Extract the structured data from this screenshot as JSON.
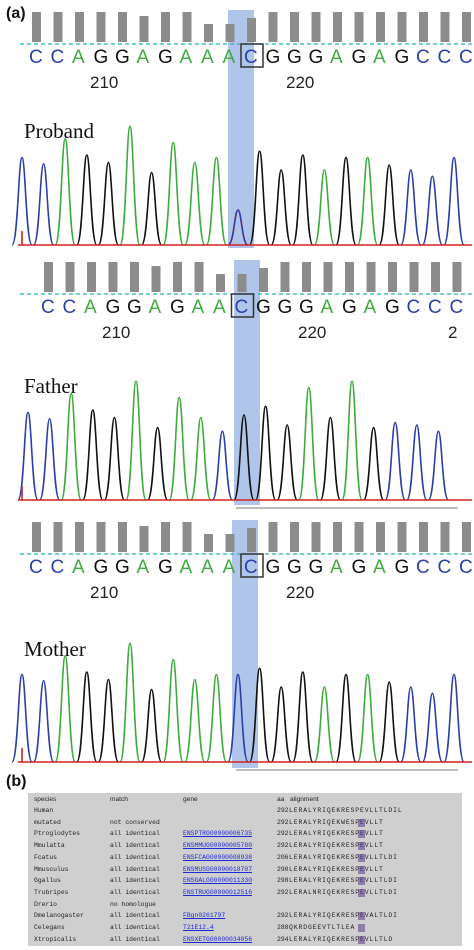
{
  "figure": {
    "panel_a": "(a)",
    "panel_b": "(b)",
    "colors": {
      "A": "#3dab3d",
      "C": "#2b3fa8",
      "G": "#111111",
      "T": "#d42020",
      "highlight": "#4f7fd0",
      "dash": "#27b0b0"
    },
    "traces": [
      {
        "name": "Proband",
        "sequence": [
          "C",
          "C",
          "A",
          "G",
          "G",
          "A",
          "G",
          "A",
          "A",
          "A",
          "C",
          "G",
          "G",
          "G",
          "A",
          "G",
          "A",
          "G",
          "C",
          "C",
          "C"
        ],
        "positions": [
          "210",
          "220"
        ],
        "boxed_index": 10
      },
      {
        "name": "Father",
        "sequence": [
          "C",
          "C",
          "A",
          "G",
          "G",
          "A",
          "G",
          "A",
          "A",
          "C",
          "G",
          "G",
          "G",
          "A",
          "G",
          "A",
          "G",
          "C",
          "C",
          "C"
        ],
        "positions": [
          "210",
          "220",
          "2"
        ],
        "boxed_index": 9
      },
      {
        "name": "Mother",
        "sequence": [
          "C",
          "C",
          "A",
          "G",
          "G",
          "A",
          "G",
          "A",
          "A",
          "A",
          "C",
          "G",
          "G",
          "G",
          "A",
          "G",
          "A",
          "G",
          "C",
          "C",
          "C"
        ],
        "positions": [
          "210",
          "220"
        ],
        "boxed_index": 10
      }
    ]
  },
  "alignment_table": {
    "headers": {
      "species": "species",
      "match": "match",
      "gene": "gene",
      "aa": "aa",
      "alignment": "alignment"
    },
    "rows": [
      {
        "species": "Human",
        "match": "",
        "gene": "",
        "aa": "292",
        "seq": "LERALYRIQEKRESPEVLLTLDIL"
      },
      {
        "species": "mutated",
        "match": "not conserved",
        "gene": "",
        "aa": "292",
        "seq": "LERALYRIQEKWESPEVLLT"
      },
      {
        "species": "Ptroglodytes",
        "match": "all identical",
        "gene": "ENSPTRG00000006735",
        "aa": "292",
        "seq": "LERALYRIQEKRESPEVLLT"
      },
      {
        "species": "Mmulatta",
        "match": "all identical",
        "gene": "ENSMMUG00000005780",
        "aa": "292",
        "seq": "LERALYRIQEKRESPEVLLT"
      },
      {
        "species": "Fcatus",
        "match": "all identical",
        "gene": "ENSFCAG00000008938",
        "aa": "206",
        "seq": "LERALYRIQEKRESPEVLLTLDI"
      },
      {
        "species": "Mmusculus",
        "match": "all identical",
        "gene": "ENSMUSG00000018707",
        "aa": "290",
        "seq": "LERALYRIQEKRESPEVLLT"
      },
      {
        "species": "Ggallus",
        "match": "all identical",
        "gene": "ENSGALG00000011330",
        "aa": "298",
        "seq": "LERALYRIQEKRESPEVLLTLDI"
      },
      {
        "species": "Trubripes",
        "match": "all identical",
        "gene": "ENSTRUG00000012516",
        "aa": "292",
        "seq": "LERALNRIQEKRESPEVLLTLDI"
      },
      {
        "species": "Drerio",
        "match": "no homologue",
        "gene": "",
        "aa": "",
        "seq": ""
      },
      {
        "species": "Dmelanogaster",
        "match": "all identical",
        "gene": "FBgn0261797",
        "aa": "292",
        "seq": "LERALYRIQEKRESPEVALTLDI"
      },
      {
        "species": "Celegans",
        "match": "all identical",
        "gene": "T21E12.4",
        "aa": "288",
        "seq": "QKRDGEEVTLTLEA"
      },
      {
        "species": "Xtropicalis",
        "match": "all identical",
        "gene": "ENSXETG00000034056",
        "aa": "294",
        "seq": "LERALYRIQEKRESPEVLLTLD"
      }
    ]
  }
}
